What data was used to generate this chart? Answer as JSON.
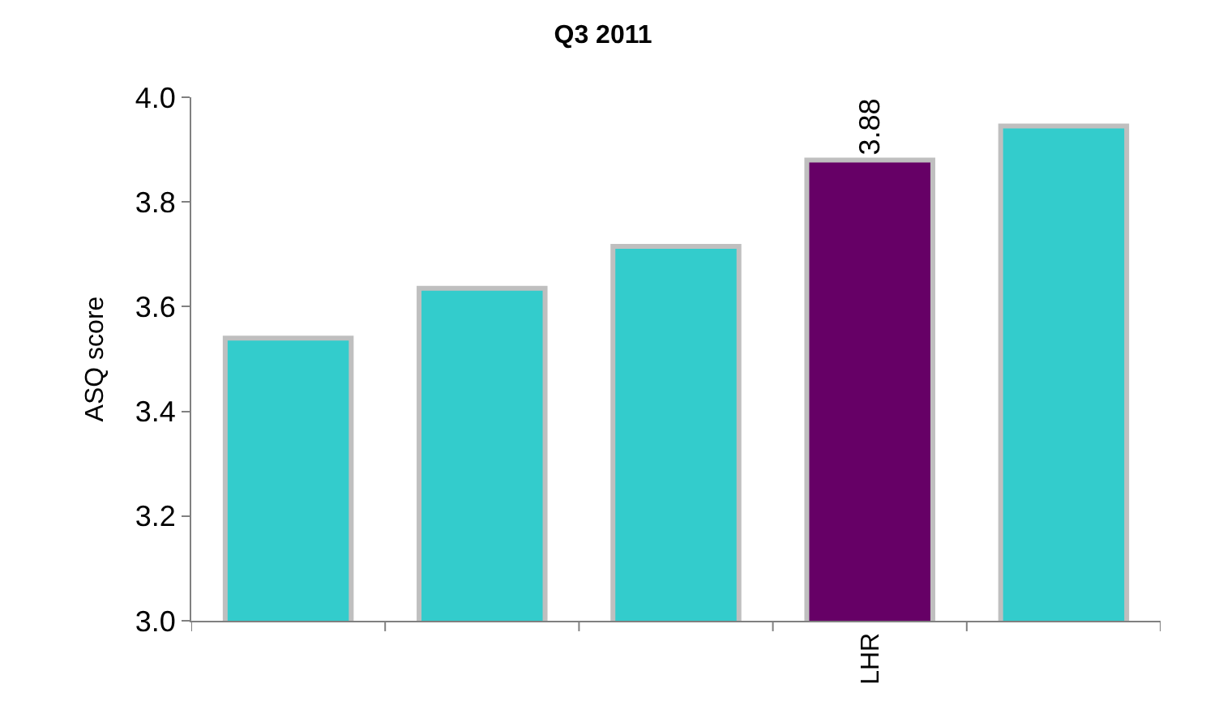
{
  "chart_data": {
    "type": "bar",
    "title": "Q3 2011",
    "ylabel": "ASQ score",
    "categories": [
      null,
      null,
      null,
      "LHR",
      null
    ],
    "values": [
      3.54,
      3.635,
      3.715,
      3.88,
      3.945
    ],
    "colors": [
      "#33cccc",
      "#33cccc",
      "#33cccc",
      "#660066",
      "#33cccc"
    ],
    "value_labels": [
      null,
      null,
      null,
      "3.88",
      null
    ],
    "ylim": [
      3.0,
      4.0
    ],
    "yticks": [
      {
        "value": 3.0,
        "label": "3.0"
      },
      {
        "value": 3.2,
        "label": "3.2"
      },
      {
        "value": 3.4,
        "label": "3.4"
      },
      {
        "value": 3.6,
        "label": "3.6"
      },
      {
        "value": 3.8,
        "label": "3.8"
      },
      {
        "value": 4.0,
        "label": "4.0"
      }
    ]
  }
}
